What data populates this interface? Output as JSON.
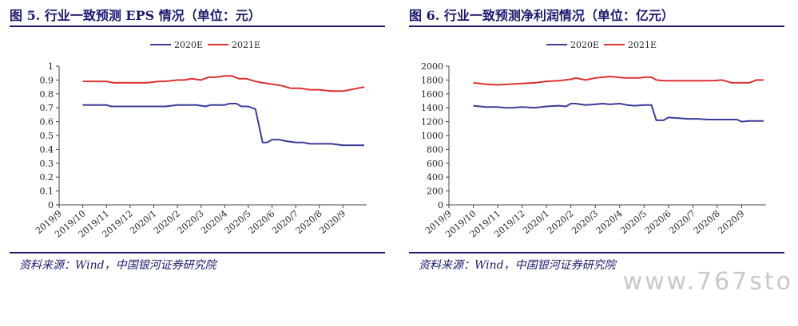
{
  "watermark": "www.767sto",
  "panels": [
    {
      "title": "图 5. 行业一致预测 EPS 情况（单位：元）",
      "source": "资料来源：Wind，中国银河证券研究院"
    },
    {
      "title": "图 6. 行业一致预测净利润情况（单位：亿元）",
      "source": "资料来源：Wind，中国银河证券研究院"
    }
  ],
  "chart_data": [
    {
      "type": "line",
      "title": "",
      "xlabel": "",
      "ylabel": "",
      "ylim": [
        0,
        1
      ],
      "yticks": [
        "0",
        "0.1",
        "0.2",
        "0.3",
        "0.4",
        "0.5",
        "0.6",
        "0.7",
        "0.8",
        "0.9",
        "1"
      ],
      "xticks": [
        "2019/9",
        "2019/10",
        "2019/11",
        "2019/12",
        "2020/1",
        "2020/2",
        "2020/3",
        "2020/4",
        "2020/5",
        "2020/6",
        "2020/7",
        "2020/8",
        "2020/9"
      ],
      "xrange": [
        0,
        13
      ],
      "grid": false,
      "legend_position": "top",
      "series": [
        {
          "name": "2020E",
          "color": "#3b3b9a",
          "x": [
            1.0,
            1.5,
            2.0,
            2.2,
            2.5,
            3.0,
            3.5,
            4.0,
            4.5,
            5.0,
            5.3,
            5.8,
            6.2,
            6.4,
            6.6,
            7.0,
            7.2,
            7.5,
            7.7,
            8.0,
            8.3,
            8.6,
            8.8,
            9.0,
            9.3,
            9.6,
            10.0,
            10.3,
            10.6,
            11.0,
            11.5,
            12.0,
            12.3,
            12.6,
            12.9
          ],
          "values": [
            0.72,
            0.72,
            0.72,
            0.71,
            0.71,
            0.71,
            0.71,
            0.71,
            0.71,
            0.72,
            0.72,
            0.72,
            0.71,
            0.72,
            0.72,
            0.72,
            0.73,
            0.73,
            0.71,
            0.71,
            0.69,
            0.45,
            0.45,
            0.47,
            0.47,
            0.46,
            0.45,
            0.45,
            0.44,
            0.44,
            0.44,
            0.43,
            0.43,
            0.43,
            0.43
          ]
        },
        {
          "name": "2021E",
          "color": "#e03030",
          "x": [
            1.0,
            1.5,
            2.0,
            2.3,
            2.7,
            3.2,
            3.7,
            4.2,
            4.5,
            5.0,
            5.3,
            5.6,
            6.0,
            6.3,
            6.6,
            7.0,
            7.3,
            7.6,
            7.9,
            8.3,
            8.6,
            9.0,
            9.4,
            9.8,
            10.2,
            10.6,
            11.0,
            11.5,
            12.0,
            12.3,
            12.6,
            12.9
          ],
          "values": [
            0.89,
            0.89,
            0.89,
            0.88,
            0.88,
            0.88,
            0.88,
            0.89,
            0.89,
            0.9,
            0.9,
            0.91,
            0.9,
            0.92,
            0.92,
            0.93,
            0.93,
            0.91,
            0.91,
            0.89,
            0.88,
            0.87,
            0.86,
            0.84,
            0.84,
            0.83,
            0.83,
            0.82,
            0.82,
            0.83,
            0.84,
            0.85
          ]
        }
      ]
    },
    {
      "type": "line",
      "title": "",
      "xlabel": "",
      "ylabel": "",
      "ylim": [
        0,
        2000
      ],
      "yticks": [
        "0",
        "200",
        "400",
        "600",
        "800",
        "1000",
        "1200",
        "1400",
        "1600",
        "1800",
        "2000"
      ],
      "xticks": [
        "2019/9",
        "2019/10",
        "2019/11",
        "2019/12",
        "2020/1",
        "2020/2",
        "2020/3",
        "2020/4",
        "2020/5",
        "2020/6",
        "2020/7",
        "2020/8",
        "2020/9"
      ],
      "xrange": [
        0,
        13
      ],
      "grid": false,
      "legend_position": "top",
      "series": [
        {
          "name": "2020E",
          "color": "#3b3b9a",
          "x": [
            1.0,
            1.5,
            2.0,
            2.3,
            2.6,
            3.0,
            3.5,
            4.0,
            4.5,
            4.8,
            5.0,
            5.2,
            5.6,
            6.0,
            6.3,
            6.6,
            7.0,
            7.3,
            7.6,
            8.0,
            8.3,
            8.5,
            8.8,
            9.0,
            9.4,
            9.8,
            10.2,
            10.6,
            11.0,
            11.4,
            11.8,
            12.0,
            12.3,
            12.6,
            12.9
          ],
          "values": [
            1430,
            1410,
            1410,
            1400,
            1400,
            1410,
            1400,
            1420,
            1430,
            1420,
            1460,
            1460,
            1440,
            1450,
            1460,
            1450,
            1460,
            1440,
            1430,
            1440,
            1440,
            1220,
            1220,
            1260,
            1250,
            1240,
            1240,
            1230,
            1230,
            1230,
            1230,
            1200,
            1210,
            1210,
            1210
          ]
        },
        {
          "name": "2021E",
          "color": "#e03030",
          "x": [
            1.0,
            1.5,
            2.0,
            2.5,
            3.0,
            3.5,
            4.0,
            4.5,
            5.0,
            5.2,
            5.6,
            6.0,
            6.3,
            6.6,
            6.9,
            7.2,
            7.5,
            7.8,
            8.0,
            8.3,
            8.5,
            8.8,
            9.2,
            9.6,
            10.0,
            10.4,
            10.8,
            11.2,
            11.6,
            12.0,
            12.3,
            12.6,
            12.9
          ],
          "values": [
            1760,
            1740,
            1730,
            1740,
            1750,
            1760,
            1780,
            1790,
            1810,
            1830,
            1800,
            1830,
            1840,
            1850,
            1840,
            1830,
            1830,
            1830,
            1840,
            1840,
            1800,
            1790,
            1790,
            1790,
            1790,
            1790,
            1790,
            1800,
            1760,
            1760,
            1760,
            1800,
            1800
          ]
        }
      ]
    }
  ]
}
